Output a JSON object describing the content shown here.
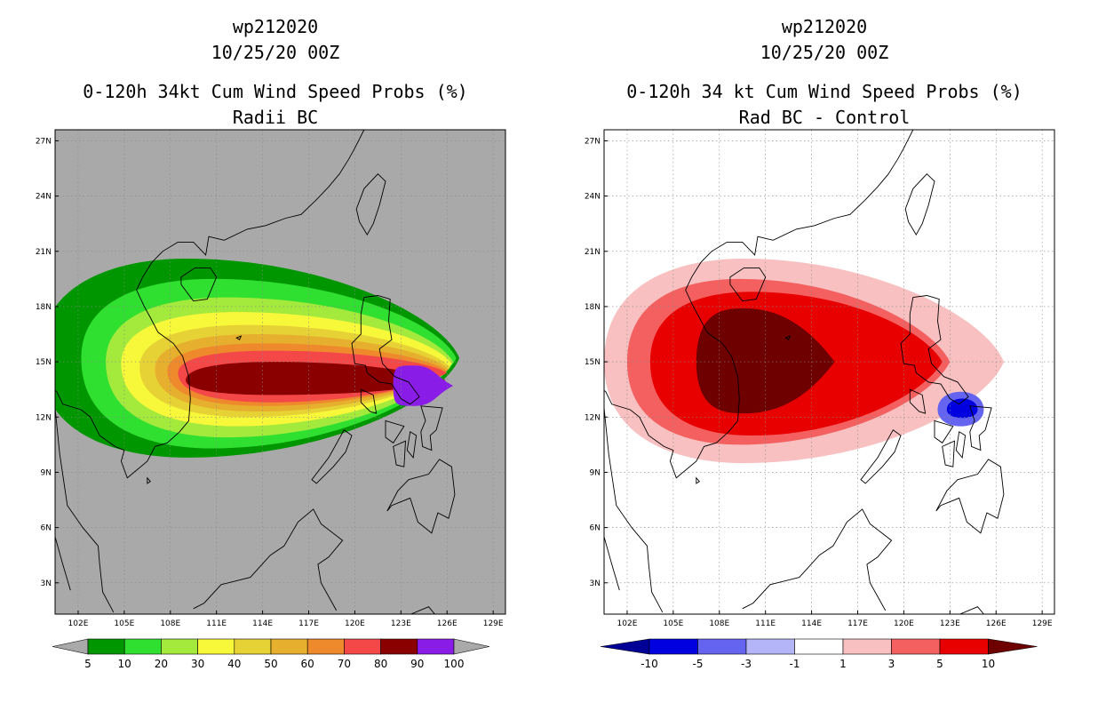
{
  "chart_data": [
    {
      "type": "heatmap",
      "storm_id": "wp212020",
      "datetime": "10/25/20 00Z",
      "title": "0-120h 34kt Cum Wind Speed Probs (%)",
      "subtitle": "Radii BC",
      "lon_ticks": [
        "102E",
        "105E",
        "108E",
        "111E",
        "114E",
        "117E",
        "120E",
        "123E",
        "126E",
        "129E"
      ],
      "lat_ticks": [
        "3N",
        "6N",
        "9N",
        "12N",
        "15N",
        "18N",
        "21N",
        "24N",
        "27N"
      ],
      "xlim": [
        100.5,
        129.8
      ],
      "ylim": [
        1.3,
        27.6
      ],
      "background": "#a9a9a9",
      "colorbar": {
        "labels": [
          "5",
          "10",
          "20",
          "30",
          "40",
          "50",
          "60",
          "70",
          "80",
          "90",
          "100"
        ],
        "colors": [
          "#009600",
          "#30e030",
          "#a4ea3c",
          "#f8f83a",
          "#e6d234",
          "#e6b02e",
          "#ee8a2c",
          "#f44848",
          "#8a0000",
          "#8a1ce8"
        ],
        "extend_color": "#a9a9a9"
      },
      "contours": [
        {
          "level": 5,
          "color": "#009600",
          "center_lon": 108,
          "center_lat": 15.2,
          "lon_range": [
            99.5,
            126.8
          ],
          "lat_range": [
            9.8,
            20.6
          ]
        },
        {
          "level": 10,
          "color": "#30e030",
          "center_lon": 108,
          "center_lat": 15.2,
          "lon_range": [
            102.2,
            126.6
          ],
          "lat_range": [
            10.3,
            19.5
          ]
        },
        {
          "level": 20,
          "color": "#a4ea3c",
          "center_lon": 109,
          "center_lat": 15.0,
          "lon_range": [
            103.8,
            126.4
          ],
          "lat_range": [
            10.9,
            18.5
          ]
        },
        {
          "level": 30,
          "color": "#f8f83a",
          "center_lon": 109.5,
          "center_lat": 14.9,
          "lon_range": [
            104.8,
            126.3
          ],
          "lat_range": [
            11.5,
            17.7
          ]
        },
        {
          "level": 40,
          "color": "#e6d234",
          "center_lon": 110,
          "center_lat": 14.7,
          "lon_range": [
            106.0,
            126.2
          ],
          "lat_range": [
            12.0,
            17.0
          ]
        },
        {
          "level": 50,
          "color": "#e6b02e",
          "center_lon": 111,
          "center_lat": 14.6,
          "lon_range": [
            107.0,
            126.1
          ],
          "lat_range": [
            12.3,
            16.5
          ]
        },
        {
          "level": 60,
          "color": "#ee8a2c",
          "center_lon": 111.5,
          "center_lat": 14.5,
          "lon_range": [
            107.8,
            126.0
          ],
          "lat_range": [
            12.6,
            16.0
          ]
        },
        {
          "level": 70,
          "color": "#f44848",
          "center_lon": 112,
          "center_lat": 14.4,
          "lon_range": [
            108.5,
            126.0
          ],
          "lat_range": [
            12.8,
            15.6
          ]
        },
        {
          "level": 80,
          "color": "#8a0000",
          "center_lon": 115,
          "center_lat": 14.0,
          "lon_range": [
            109.0,
            125.9
          ],
          "lat_range": [
            13.2,
            15.0
          ]
        },
        {
          "level": 90,
          "color": "#8a1ce8",
          "center_lon": 125,
          "center_lat": 13.7,
          "lon_range": [
            122.5,
            126.4
          ],
          "lat_range": [
            12.6,
            14.8
          ]
        }
      ]
    },
    {
      "type": "heatmap",
      "storm_id": "wp212020",
      "datetime": "10/25/20 00Z",
      "title": "0-120h 34 kt Cum Wind Speed Probs (%)",
      "subtitle": "Rad BC - Control",
      "lon_ticks": [
        "102E",
        "105E",
        "108E",
        "111E",
        "114E",
        "117E",
        "120E",
        "123E",
        "126E",
        "129E"
      ],
      "lat_ticks": [
        "3N",
        "6N",
        "9N",
        "12N",
        "15N",
        "18N",
        "21N",
        "24N",
        "27N"
      ],
      "xlim": [
        100.5,
        129.8
      ],
      "ylim": [
        1.3,
        27.6
      ],
      "background": "#ffffff",
      "colorbar": {
        "labels": [
          "-10",
          "-5",
          "-3",
          "-1",
          "1",
          "3",
          "5",
          "10"
        ],
        "colors": [
          "#0000e0",
          "#6464f0",
          "#b4b4f8",
          "#ffffff",
          "#f8c0c0",
          "#f46060",
          "#e80000"
        ],
        "extend_low_color": "#000096",
        "extend_high_color": "#6e0000"
      },
      "contours": [
        {
          "level": 1,
          "color": "#f8c0c0",
          "center_lon": 110,
          "center_lat": 15.0,
          "lon_range": [
            100.5,
            126.5
          ],
          "lat_range": [
            9.5,
            20.6
          ]
        },
        {
          "level": 3,
          "color": "#f46060",
          "center_lon": 110,
          "center_lat": 15.0,
          "lon_range": [
            102.0,
            123.0
          ],
          "lat_range": [
            10.5,
            19.5
          ]
        },
        {
          "level": 5,
          "color": "#e80000",
          "center_lon": 110,
          "center_lat": 15.0,
          "lon_range": [
            103.5,
            122.5
          ],
          "lat_range": [
            11.0,
            18.8
          ]
        },
        {
          "level": 10,
          "color": "#6e0000",
          "center_lon": 110,
          "center_lat": 15.0,
          "lon_range": [
            106.5,
            115.5
          ],
          "lat_range": [
            12.2,
            17.9
          ]
        },
        {
          "level": -5,
          "color": "#6464f0",
          "center_lon": 123.8,
          "center_lat": 12.4,
          "lon_range": [
            122.2,
            125.2
          ],
          "lat_range": [
            11.2,
            13.7
          ]
        },
        {
          "level": -10,
          "color": "#0000e0",
          "center_lon": 123.8,
          "center_lat": 12.4,
          "lon_range": [
            122.8,
            124.8
          ],
          "lat_range": [
            11.8,
            13.2
          ]
        }
      ]
    }
  ]
}
